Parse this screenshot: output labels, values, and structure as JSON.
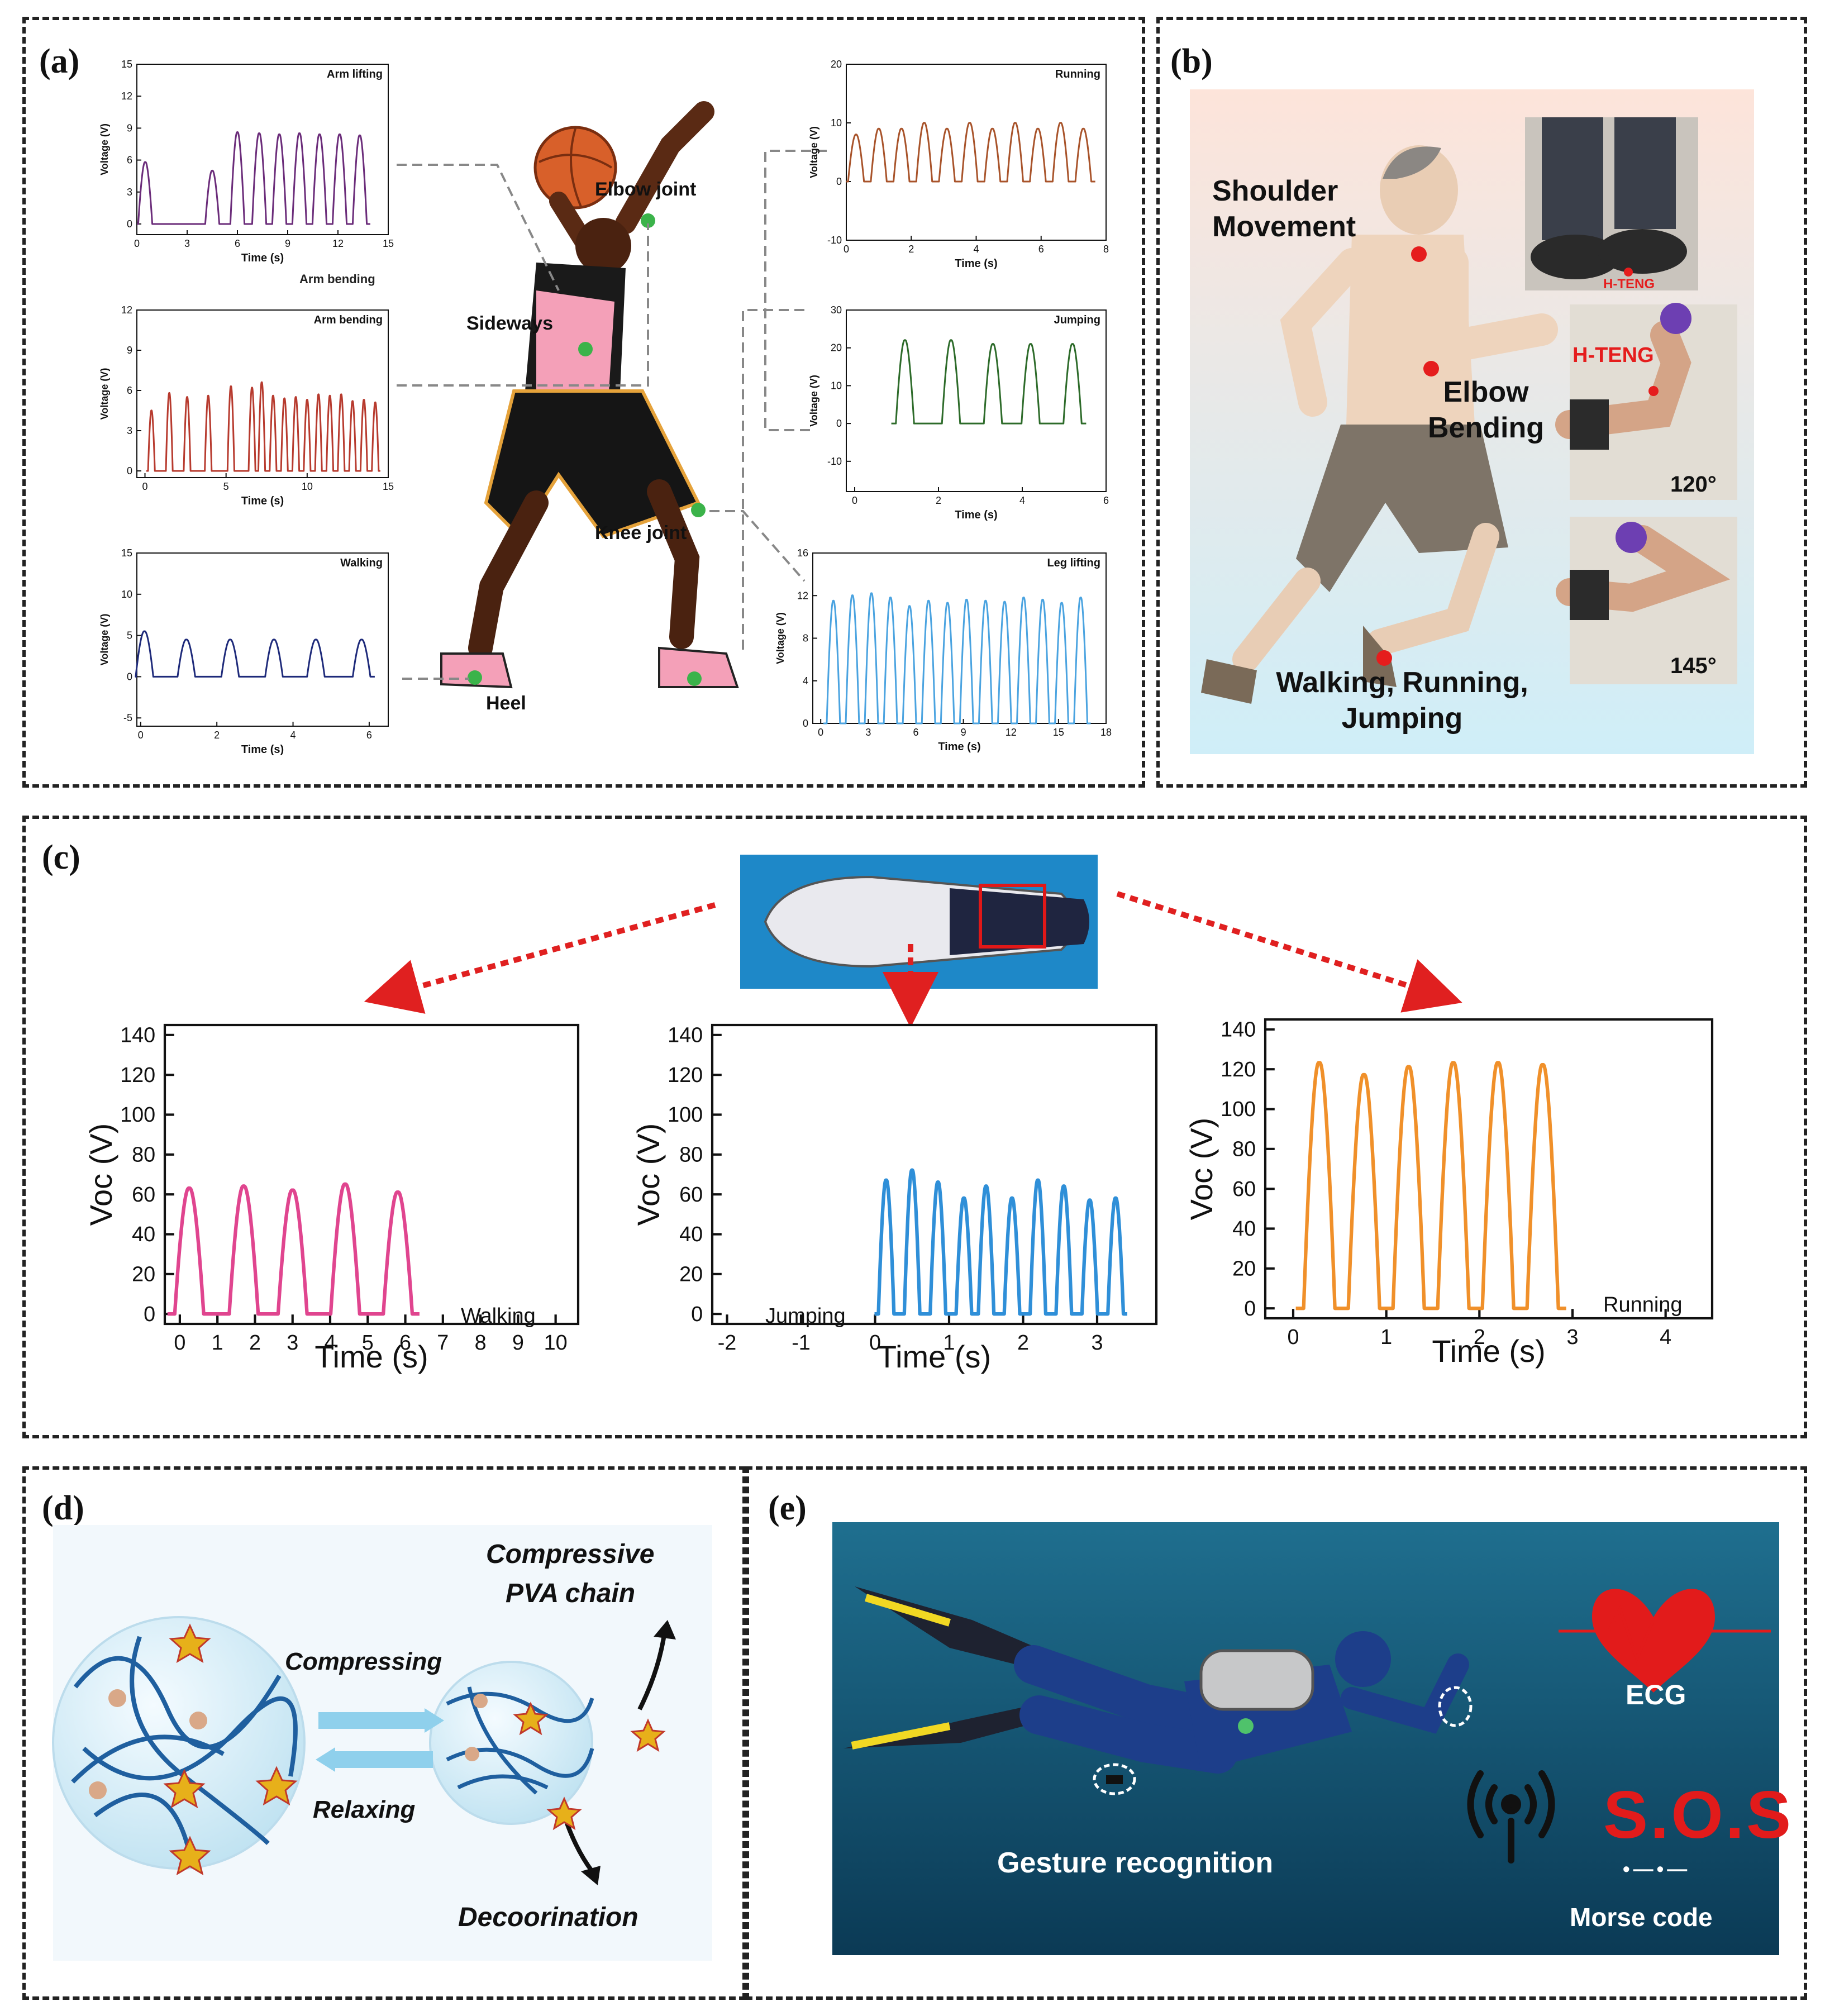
{
  "panels": {
    "a": "(a)",
    "b": "(b)",
    "c": "(c)",
    "d": "(d)",
    "e": "(e)"
  },
  "panel_a": {
    "joints": {
      "elbow": "Elbow joint",
      "sideways": "Sideways",
      "knee": "Knee joint",
      "heel": "Heel"
    },
    "ylabel": "Voltage (V)",
    "xlabel": "Time (s)",
    "extra_label": "Arm bending"
  },
  "panel_b": {
    "shoulder": "Shoulder Movement",
    "elbow": "Elbow Bending",
    "walking": "Walking, Running, Jumping",
    "hteng_small": "H-TENG",
    "hteng": "H-TENG",
    "angle1": "120°",
    "angle2": "145°"
  },
  "panel_c": {
    "ylabel": "Voc (V)",
    "xlabel": "Time (s)",
    "walking": "Walking",
    "jumping": "Jumping",
    "running": "Running"
  },
  "panel_d": {
    "compressive": "Compressive",
    "pva": "PVA chain",
    "compressing": "Compressing",
    "relaxing": "Relaxing",
    "decoorination": "Decoorination"
  },
  "panel_e": {
    "ecg": "ECG",
    "sos": "S.O.S",
    "morse_glyph": "•—•—",
    "morse": "Morse code",
    "gesture": "Gesture recognition"
  },
  "chart_data": [
    {
      "type": "line",
      "title": "Arm lifting",
      "xlabel": "Time (s)",
      "ylabel": "Voltage (V)",
      "xlim": [
        0,
        15
      ],
      "ylim": [
        -1,
        15
      ],
      "xticks": [
        0,
        3,
        6,
        9,
        12,
        15
      ],
      "yticks": [
        0,
        3,
        6,
        9,
        12,
        15
      ],
      "color": "#6b2c7a",
      "x": [
        0.5,
        4.5,
        6.0,
        7.3,
        8.5,
        9.7,
        10.9,
        12.1,
        13.3
      ],
      "values": [
        5.8,
        5.0,
        8.6,
        8.5,
        8.4,
        8.5,
        8.4,
        8.4,
        8.3
      ]
    },
    {
      "type": "line",
      "title": "Arm bending",
      "xlabel": "Time (s)",
      "ylabel": "Voltage (V)",
      "xlim": [
        -0.5,
        15
      ],
      "ylim": [
        -0.5,
        12
      ],
      "xticks": [
        0,
        5,
        10,
        15
      ],
      "yticks": [
        0,
        3,
        6,
        9,
        12
      ],
      "color": "#b73a2e",
      "x": [
        0.4,
        1.5,
        2.6,
        3.9,
        5.3,
        6.6,
        7.2,
        7.9,
        8.6,
        9.3,
        10.0,
        10.7,
        11.4,
        12.1,
        12.8,
        13.5,
        14.2
      ],
      "values": [
        4.5,
        5.8,
        5.5,
        5.6,
        6.3,
        6.2,
        6.6,
        5.6,
        5.4,
        5.5,
        5.3,
        5.7,
        5.6,
        5.7,
        5.2,
        5.3,
        5.1
      ]
    },
    {
      "type": "line",
      "title": "Walking",
      "xlabel": "Time (s)",
      "ylabel": "Voltage (V)",
      "xlim": [
        -0.1,
        6.5
      ],
      "ylim": [
        -6,
        15
      ],
      "xticks": [
        0,
        2,
        4,
        6
      ],
      "yticks": [
        -5,
        0,
        5,
        10,
        15
      ],
      "color": "#1e2a7a",
      "x": [
        0.1,
        1.2,
        2.35,
        3.5,
        4.6,
        5.8
      ],
      "values": [
        5.5,
        4.5,
        4.5,
        4.5,
        4.5,
        4.5
      ]
    },
    {
      "type": "line",
      "title": "Running",
      "xlabel": "Time (s)",
      "ylabel": "Voltage (V)",
      "xlim": [
        0,
        8
      ],
      "ylim": [
        -10,
        20
      ],
      "xticks": [
        0,
        2,
        4,
        6,
        8
      ],
      "yticks": [
        -10,
        0,
        10,
        20
      ],
      "color": "#a8532a",
      "x": [
        0.3,
        1.0,
        1.7,
        2.4,
        3.1,
        3.8,
        4.5,
        5.2,
        5.9,
        6.6,
        7.3
      ],
      "values": [
        8,
        9,
        9,
        10,
        9,
        10,
        9,
        10,
        9,
        10,
        9
      ]
    },
    {
      "type": "line",
      "title": "Jumping",
      "xlabel": "Time (s)",
      "ylabel": "Voltage (V)",
      "xlim": [
        -0.2,
        6
      ],
      "ylim": [
        -18,
        30
      ],
      "xticks": [
        0,
        2,
        4,
        6
      ],
      "yticks": [
        -10,
        0,
        10,
        20,
        30
      ],
      "color": "#2d6b2a",
      "x": [
        1.2,
        2.3,
        3.3,
        4.2,
        5.2
      ],
      "values": [
        22,
        22,
        21,
        21,
        21
      ]
    },
    {
      "type": "line",
      "title": "Leg lifting",
      "xlabel": "Time (s)",
      "ylabel": "Voltage (V)",
      "xlim": [
        -0.5,
        18
      ],
      "ylim": [
        0,
        16
      ],
      "xticks": [
        0,
        3,
        6,
        9,
        12,
        15,
        18
      ],
      "yticks": [
        0,
        4,
        8,
        12,
        16
      ],
      "color": "#4aa3e0",
      "x": [
        0.8,
        2.0,
        3.2,
        4.4,
        5.6,
        6.8,
        8.0,
        9.2,
        10.4,
        11.6,
        12.8,
        14.0,
        15.2,
        16.4
      ],
      "values": [
        11.5,
        12.0,
        12.2,
        11.8,
        11.0,
        11.5,
        11.3,
        11.6,
        11.5,
        11.4,
        11.8,
        11.6,
        11.3,
        11.8
      ]
    },
    {
      "type": "line",
      "title": "",
      "xlabel": "Time (s)",
      "ylabel": "Voc (V)",
      "xlim": [
        -0.4,
        10.6
      ],
      "ylim": [
        -5,
        145
      ],
      "xticks": [
        0,
        1,
        2,
        3,
        4,
        5,
        6,
        7,
        8,
        9,
        10
      ],
      "yticks": [
        0,
        20,
        40,
        60,
        80,
        100,
        120,
        140
      ],
      "color": "#e0458f",
      "x": [
        0.25,
        1.7,
        3.0,
        4.4,
        5.8
      ],
      "values": [
        63,
        64,
        62,
        65,
        61
      ]
    },
    {
      "type": "line",
      "title": "",
      "xlabel": "Time (s)",
      "ylabel": "Voc (V)",
      "xlim": [
        -2.2,
        3.8
      ],
      "ylim": [
        -5,
        145
      ],
      "xticks": [
        -2,
        -1,
        0,
        1,
        2,
        3
      ],
      "yticks": [
        0,
        20,
        40,
        60,
        80,
        100,
        120,
        140
      ],
      "color": "#2f8fd8",
      "x": [
        0.15,
        0.5,
        0.85,
        1.2,
        1.5,
        1.85,
        2.2,
        2.55,
        2.9,
        3.25
      ],
      "values": [
        67,
        72,
        66,
        58,
        64,
        58,
        67,
        64,
        57,
        58
      ]
    },
    {
      "type": "line",
      "title": "",
      "xlabel": "Time (s)",
      "ylabel": "Voc (V)",
      "xlim": [
        -0.3,
        4.5
      ],
      "ylim": [
        -5,
        145
      ],
      "xticks": [
        0,
        1,
        2,
        3,
        4
      ],
      "yticks": [
        0,
        20,
        40,
        60,
        80,
        100,
        120,
        140
      ],
      "color": "#f0902a",
      "x": [
        0.28,
        0.76,
        1.24,
        1.72,
        2.2,
        2.68
      ],
      "values": [
        123,
        117,
        121,
        123,
        123,
        122
      ]
    }
  ]
}
